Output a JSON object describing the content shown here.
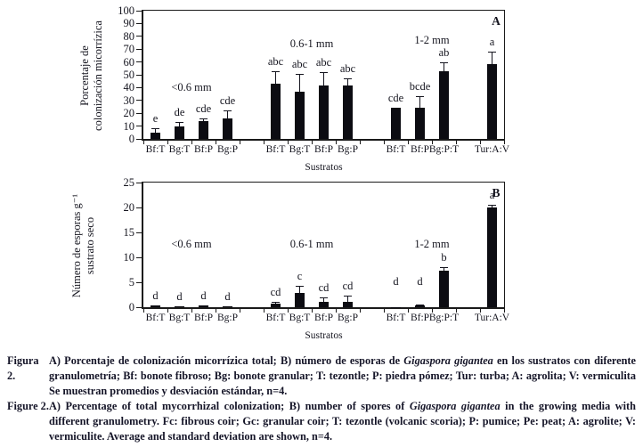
{
  "chart_data": [
    {
      "type": "bar",
      "panel": "A",
      "ylabel_lines": [
        "Porcentaje de",
        "colonización micorrízica"
      ],
      "xlabel": "Sustratos",
      "ylim": [
        0,
        100
      ],
      "yticks": [
        0,
        10,
        20,
        30,
        40,
        50,
        60,
        70,
        80,
        90,
        100
      ],
      "n_slots": 15,
      "grid": false,
      "groups": [
        {
          "label": "<0.6 mm",
          "slot_x": 2,
          "label_y": 45
        },
        {
          "label": "0.6-1 mm",
          "slot_x": 7,
          "label_y": 79
        },
        {
          "label": "1-2 mm",
          "slot_x": 12,
          "label_y": 82
        }
      ],
      "bars": [
        {
          "slot": 0,
          "label": "Bf:T",
          "value": 5,
          "err_top": 8,
          "sig": "e"
        },
        {
          "slot": 1,
          "label": "Bg:T",
          "value": 10,
          "err_top": 13,
          "sig": "de"
        },
        {
          "slot": 2,
          "label": "Bf:P",
          "value": 14,
          "err_top": 16,
          "sig": "cde"
        },
        {
          "slot": 3,
          "label": "Bg:P",
          "value": 16,
          "err_top": 22,
          "sig": "cde"
        },
        {
          "slot": 5,
          "label": "Bf:T",
          "value": 43,
          "err_top": 53,
          "sig": "abc"
        },
        {
          "slot": 6,
          "label": "Bg:T",
          "value": 37,
          "err_top": 51,
          "sig": "abc"
        },
        {
          "slot": 7,
          "label": "Bf:P",
          "value": 42,
          "err_top": 52,
          "sig": "abc"
        },
        {
          "slot": 8,
          "label": "Bg:P",
          "value": 42,
          "err_top": 47,
          "sig": "abc"
        },
        {
          "slot": 10,
          "label": "Bf:T",
          "value": 24,
          "err_top": null,
          "sig": "cde"
        },
        {
          "slot": 11,
          "label": "Bf:P",
          "value": 24,
          "err_top": 33,
          "sig": "bcde"
        },
        {
          "slot": 12,
          "label": "Bg:P:T",
          "value": 53,
          "err_top": 60,
          "sig": "ab"
        },
        {
          "slot": 14,
          "label": "Tur:A:V",
          "value": 58,
          "err_top": 68,
          "sig": "a"
        }
      ]
    },
    {
      "type": "bar",
      "panel": "B",
      "ylabel_lines": [
        "Número de esporas g⁻¹",
        "sustrato seco"
      ],
      "xlabel": "Sustratos",
      "ylim": [
        0,
        25
      ],
      "yticks": [
        0,
        5,
        10,
        15,
        20,
        25
      ],
      "n_slots": 15,
      "grid": false,
      "groups": [
        {
          "label": "<0.6 mm",
          "slot_x": 2,
          "label_y": 14
        },
        {
          "label": "0.6-1 mm",
          "slot_x": 7,
          "label_y": 14
        },
        {
          "label": "1-2 mm",
          "slot_x": 12,
          "label_y": 14
        }
      ],
      "bars": [
        {
          "slot": 0,
          "label": "Bf:T",
          "value": 0.4,
          "err_top": null,
          "sig": "d"
        },
        {
          "slot": 1,
          "label": "Bg:T",
          "value": 0.25,
          "err_top": null,
          "sig": "d"
        },
        {
          "slot": 2,
          "label": "Bf:P",
          "value": 0.3,
          "err_top": null,
          "sig": "d"
        },
        {
          "slot": 3,
          "label": "Bg:P",
          "value": 0.12,
          "err_top": null,
          "sig": "d"
        },
        {
          "slot": 5,
          "label": "Bf:T",
          "value": 0.7,
          "err_top": 1.0,
          "sig": "cd"
        },
        {
          "slot": 6,
          "label": "Bg:T",
          "value": 2.8,
          "err_top": 4.3,
          "sig": "c"
        },
        {
          "slot": 7,
          "label": "Bf:P",
          "value": 1.0,
          "err_top": 1.9,
          "sig": "cd"
        },
        {
          "slot": 8,
          "label": "Bg:P",
          "value": 1.1,
          "err_top": 2.3,
          "sig": "cd"
        },
        {
          "slot": 10,
          "label": "Bf:T",
          "value": 0.05,
          "err_top": null,
          "sig": "d",
          "sig_y": 3.3
        },
        {
          "slot": 11,
          "label": "Bf:P",
          "value": 0.3,
          "err_top": 0.55,
          "sig": "d",
          "sig_y": 3.3
        },
        {
          "slot": 12,
          "label": "Bg:P:T",
          "value": 7.3,
          "err_top": 8.1,
          "sig": "b"
        },
        {
          "slot": 14,
          "label": "Tur:A:V",
          "value": 20,
          "err_top": 20.5,
          "sig": "a"
        }
      ]
    }
  ],
  "caption": {
    "entries": [
      {
        "label": "Figura 2.",
        "parts": [
          {
            "text": "A) Porcentaje de colonización micorrízica total; B) número de esporas de "
          },
          {
            "text": "Gigaspora gigantea",
            "italic": true
          },
          {
            "text": " en los sustratos con diferente granulometría; Bf: bonote fibroso; Bg: bonote granular; T: tezontle; P: piedra pómez; Tur: turba; A: agrolita; V: vermiculita Se muestran promedios y desviación estándar, n=4."
          }
        ]
      },
      {
        "label": "Figure 2.",
        "parts": [
          {
            "text": "A) Percentage of total mycorrhizal colonization; B) number of spores of "
          },
          {
            "text": "Gigaspora gigantea",
            "italic": true
          },
          {
            "text": " in the growing media with different granulometry. Fc: fibrous coir; Gc: granular coir; T: tezontle (volcanic scoria); P: pumice; Pe: peat; A: agrolite; V: vermiculite. Average and standard deviation are shown, n=4."
          }
        ]
      }
    ]
  }
}
